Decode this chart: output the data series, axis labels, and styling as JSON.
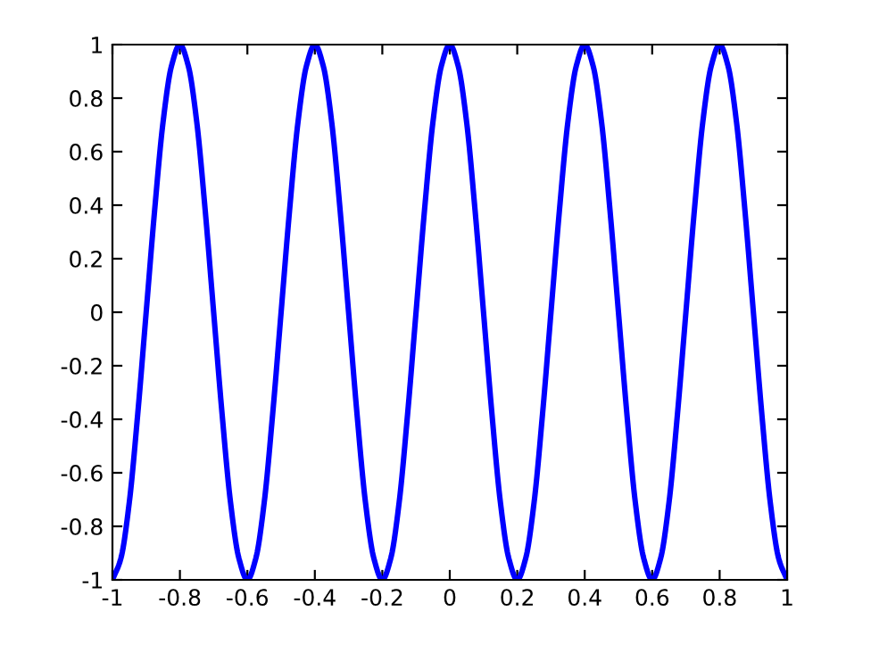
{
  "chart_data": {
    "type": "line",
    "x": [
      -1,
      -0.975,
      -0.95,
      -0.925,
      -0.9,
      -0.875,
      -0.85,
      -0.825,
      -0.8,
      -0.775,
      -0.75,
      -0.725,
      -0.7,
      -0.675,
      -0.65,
      -0.625,
      -0.6,
      -0.575,
      -0.55,
      -0.525,
      -0.5,
      -0.475,
      -0.45,
      -0.425,
      -0.4,
      -0.375,
      -0.35,
      -0.325,
      -0.3,
      -0.275,
      -0.25,
      -0.225,
      -0.2,
      -0.175,
      -0.15,
      -0.125,
      -0.1,
      -0.075,
      -0.05,
      -0.025,
      0,
      0.025,
      0.05,
      0.075,
      0.1,
      0.125,
      0.15,
      0.175,
      0.2,
      0.225,
      0.25,
      0.275,
      0.3,
      0.325,
      0.35,
      0.375,
      0.4,
      0.425,
      0.45,
      0.475,
      0.5,
      0.525,
      0.55,
      0.575,
      0.6,
      0.625,
      0.65,
      0.675,
      0.7,
      0.725,
      0.75,
      0.775,
      0.8,
      0.825,
      0.85,
      0.875,
      0.9,
      0.925,
      0.95,
      0.975,
      1
    ],
    "series": [
      {
        "color": "#0000ff",
        "values": [
          -1,
          -0.92,
          -0.71,
          -0.38,
          0,
          0.38,
          0.71,
          0.92,
          1,
          0.92,
          0.71,
          0.38,
          0,
          -0.38,
          -0.71,
          -0.92,
          -1,
          -0.92,
          -0.71,
          -0.38,
          0,
          0.38,
          0.71,
          0.92,
          1,
          0.92,
          0.71,
          0.38,
          0,
          -0.38,
          -0.71,
          -0.92,
          -1,
          -0.92,
          -0.71,
          -0.38,
          0,
          0.38,
          0.71,
          0.92,
          1,
          0.92,
          0.71,
          0.38,
          0,
          -0.38,
          -0.71,
          -0.92,
          -1,
          -0.92,
          -0.71,
          -0.38,
          0,
          0.38,
          0.71,
          0.92,
          1,
          0.92,
          0.71,
          0.38,
          0,
          -0.38,
          -0.71,
          -0.92,
          -1,
          -0.92,
          -0.71,
          -0.38,
          0,
          0.38,
          0.71,
          0.92,
          1,
          0.92,
          0.71,
          0.38,
          0,
          -0.38,
          -0.71,
          -0.92,
          -1
        ]
      }
    ],
    "xlim": [
      -1,
      1
    ],
    "ylim": [
      -1,
      1
    ],
    "xticks": [
      -1,
      -0.8,
      -0.6,
      -0.4,
      -0.2,
      0,
      0.2,
      0.4,
      0.6,
      0.8,
      1
    ],
    "yticks": [
      -1,
      -0.8,
      -0.6,
      -0.4,
      -0.2,
      0,
      0.2,
      0.4,
      0.6,
      0.8,
      1
    ],
    "grid": false,
    "marker": "none",
    "line_style": "solid"
  }
}
